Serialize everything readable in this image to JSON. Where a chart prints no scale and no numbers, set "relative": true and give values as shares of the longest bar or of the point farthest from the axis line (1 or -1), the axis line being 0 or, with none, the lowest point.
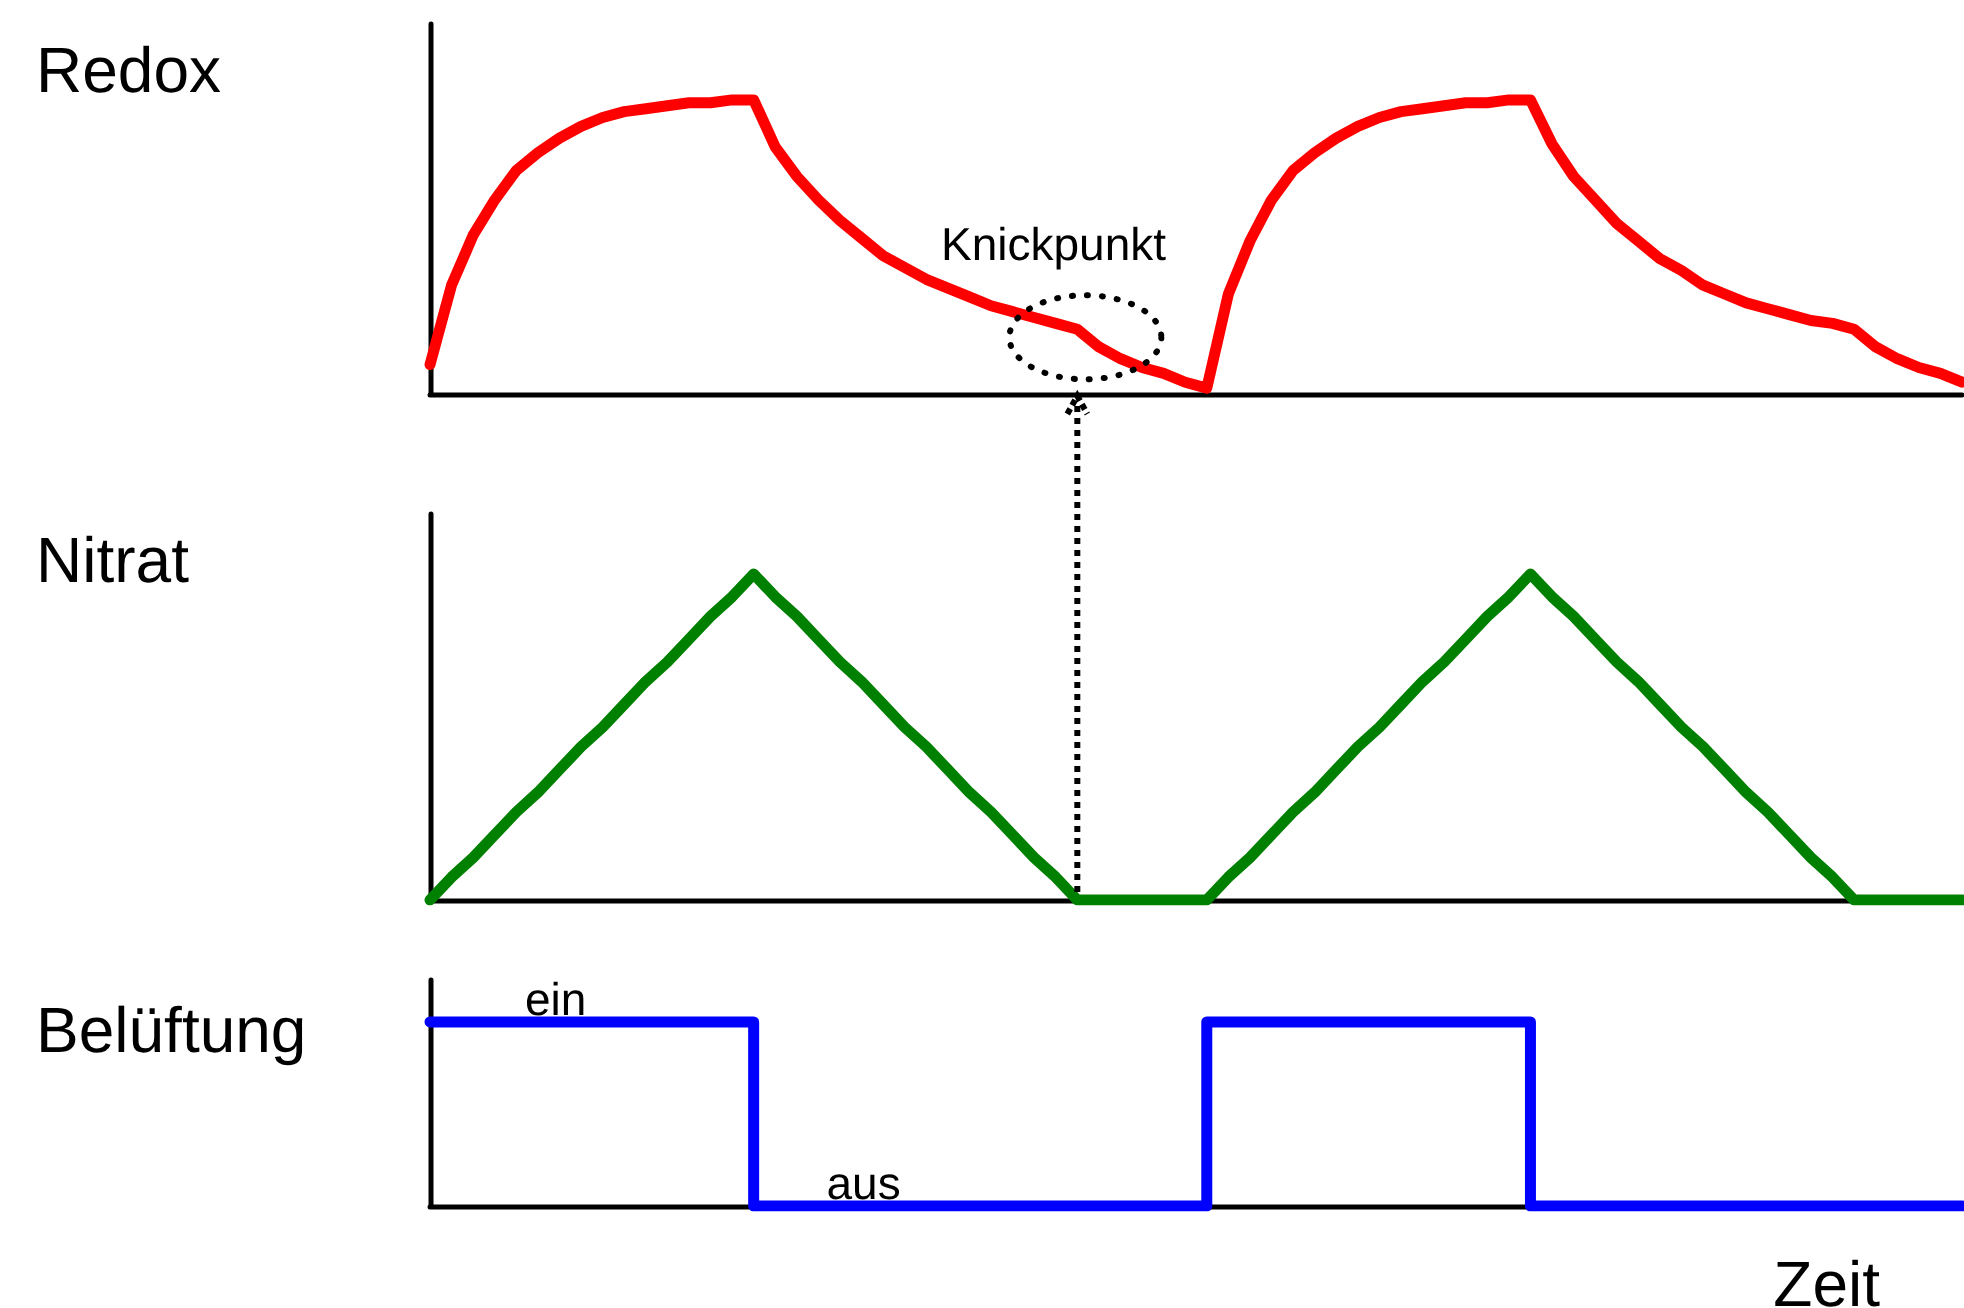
{
  "chart_data": [
    {
      "type": "line",
      "ylabel": "Redox",
      "relative": true,
      "marker": "none",
      "line_style": "solid",
      "tick_labels": false,
      "categories": [
        null,
        null,
        null,
        null,
        null,
        null,
        null,
        null,
        null,
        null,
        null,
        null,
        null,
        null,
        null,
        null,
        null,
        null,
        null,
        null,
        null,
        null,
        null,
        null,
        null,
        null,
        null,
        null,
        null,
        null,
        null,
        null,
        null,
        null,
        null,
        null,
        null,
        null,
        null,
        null,
        null,
        null,
        null,
        null,
        null,
        null,
        null,
        null,
        null,
        null,
        null,
        null,
        null,
        null,
        null,
        null,
        null,
        null,
        null,
        null,
        null,
        null,
        null,
        null,
        null,
        null,
        null,
        null,
        null,
        null,
        null,
        null
      ],
      "series": [
        {
          "color": "#ff0000",
          "values": [
            0.1,
            0.37,
            0.54,
            0.66,
            0.76,
            0.82,
            0.87,
            0.91,
            0.94,
            0.96,
            0.97,
            0.98,
            0.99,
            0.99,
            1.0,
            1.0,
            0.84,
            0.74,
            0.66,
            0.59,
            0.53,
            0.47,
            0.43,
            0.39,
            0.36,
            0.33,
            0.3,
            0.28,
            0.26,
            0.24,
            0.22,
            0.16,
            0.12,
            0.09,
            0.07,
            0.04,
            0.02,
            0.34,
            0.52,
            0.66,
            0.76,
            0.82,
            0.87,
            0.91,
            0.94,
            0.96,
            0.97,
            0.98,
            0.99,
            0.99,
            1.0,
            1.0,
            0.85,
            0.74,
            0.66,
            0.58,
            0.52,
            0.46,
            0.42,
            0.37,
            0.34,
            0.31,
            0.29,
            0.27,
            0.25,
            0.24,
            0.22,
            0.16,
            0.12,
            0.09,
            0.07,
            0.04
          ]
        }
      ],
      "annotations": [
        {
          "text": "Knickpunkt",
          "y": 0.22
        }
      ]
    },
    {
      "type": "line",
      "ylabel": "Nitrat",
      "relative": true,
      "marker": "none",
      "line_style": "solid",
      "tick_labels": false,
      "categories": [
        null,
        null,
        null,
        null,
        null,
        null,
        null,
        null,
        null,
        null,
        null,
        null,
        null,
        null,
        null,
        null,
        null,
        null,
        null,
        null,
        null,
        null,
        null,
        null,
        null,
        null,
        null,
        null,
        null,
        null,
        null,
        null,
        null,
        null,
        null,
        null,
        null,
        null,
        null,
        null,
        null,
        null,
        null,
        null,
        null,
        null,
        null,
        null,
        null,
        null,
        null,
        null,
        null,
        null,
        null,
        null,
        null,
        null,
        null,
        null,
        null,
        null,
        null,
        null,
        null,
        null,
        null,
        null,
        null,
        null,
        null,
        null
      ],
      "series": [
        {
          "color": "#008000",
          "values": [
            0,
            0.07,
            0.13,
            0.2,
            0.27,
            0.33,
            0.4,
            0.47,
            0.53,
            0.6,
            0.67,
            0.73,
            0.8,
            0.87,
            0.93,
            1,
            0.93,
            0.87,
            0.8,
            0.73,
            0.67,
            0.6,
            0.53,
            0.47,
            0.4,
            0.33,
            0.27,
            0.2,
            0.13,
            0.07,
            0,
            0,
            0,
            0,
            0,
            0,
            0,
            0.07,
            0.13,
            0.2,
            0.27,
            0.33,
            0.4,
            0.47,
            0.53,
            0.6,
            0.67,
            0.73,
            0.8,
            0.87,
            0.93,
            1,
            0.93,
            0.87,
            0.8,
            0.73,
            0.67,
            0.6,
            0.53,
            0.47,
            0.4,
            0.33,
            0.27,
            0.2,
            0.13,
            0.07,
            0,
            0,
            0,
            0,
            0,
            0
          ]
        }
      ]
    },
    {
      "type": "step",
      "ylabel": "Belüftung",
      "xlabel": "Zeit",
      "relative": true,
      "marker": "none",
      "line_style": "solid",
      "tick_labels": false,
      "categories": [
        null,
        null,
        null,
        null,
        null,
        null,
        null,
        null,
        null,
        null,
        null,
        null,
        null,
        null,
        null,
        null,
        null,
        null,
        null,
        null,
        null,
        null,
        null,
        null,
        null,
        null,
        null,
        null,
        null,
        null,
        null,
        null,
        null,
        null,
        null,
        null,
        null,
        null,
        null,
        null,
        null,
        null,
        null,
        null,
        null,
        null,
        null,
        null,
        null,
        null,
        null,
        null,
        null,
        null,
        null,
        null,
        null,
        null,
        null,
        null,
        null,
        null,
        null,
        null,
        null,
        null,
        null,
        null,
        null,
        null,
        null,
        null
      ],
      "series": [
        {
          "color": "#0000ff",
          "values": [
            1,
            1,
            1,
            1,
            1,
            1,
            1,
            1,
            1,
            1,
            1,
            1,
            1,
            1,
            1,
            0,
            0,
            0,
            0,
            0,
            0,
            0,
            0,
            0,
            0,
            0,
            0,
            0,
            0,
            0,
            0,
            0,
            0,
            0,
            0,
            0,
            1,
            1,
            1,
            1,
            1,
            1,
            1,
            1,
            1,
            1,
            1,
            1,
            1,
            1,
            1,
            0,
            0,
            0,
            0,
            0,
            0,
            0,
            0,
            0,
            0,
            0,
            0,
            0,
            0,
            0,
            0,
            0,
            0,
            0,
            0,
            0
          ]
        }
      ],
      "annotations": [
        {
          "text": "ein",
          "y": 1
        },
        {
          "text": "aus",
          "y": 0
        }
      ]
    }
  ]
}
